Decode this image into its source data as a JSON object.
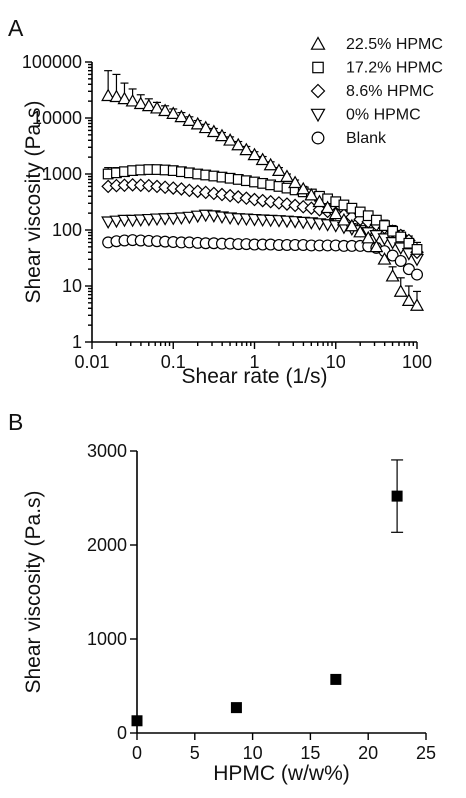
{
  "chart_data": [
    {
      "panel": "A",
      "type": "scatter",
      "xlabel": "Shear rate (1/s)",
      "ylabel": "Shear viscosity (Pa.s)",
      "xscale": "log",
      "yscale": "log",
      "xlim": [
        0.01,
        100
      ],
      "ylim": [
        1,
        100000
      ],
      "x_ticks": [
        "0.01",
        "0.1",
        "1",
        "10",
        "100"
      ],
      "y_ticks": [
        "1",
        "10",
        "100",
        "1000",
        "10000",
        "100000"
      ],
      "grid": false,
      "legend_position": "top-right",
      "series": [
        {
          "name": "22.5% HPMC",
          "marker": "triangle-up",
          "x": [
            0.0158,
            0.02,
            0.0251,
            0.0316,
            0.0398,
            0.0501,
            0.0631,
            0.0794,
            0.1,
            0.126,
            0.158,
            0.2,
            0.251,
            0.316,
            0.398,
            0.501,
            0.631,
            0.794,
            1.0,
            1.26,
            1.58,
            2.0,
            2.51,
            3.16,
            3.98,
            5.01,
            6.31,
            7.94,
            10.0,
            12.6,
            15.8,
            20.0,
            25.1,
            31.6,
            39.8,
            50.1,
            63.1,
            79.4,
            100
          ],
          "y": [
            25000,
            24000,
            22000,
            20000,
            18000,
            16500,
            15000,
            13500,
            12000,
            10500,
            9000,
            7800,
            6700,
            5700,
            4800,
            4000,
            3300,
            2700,
            2200,
            1800,
            1450,
            1150,
            900,
            700,
            540,
            420,
            320,
            250,
            195,
            150,
            118,
            92,
            72,
            50,
            30,
            15,
            8,
            5.5,
            4.5
          ],
          "y_upper": [
            70000,
            60000,
            42000,
            33000,
            26000,
            22000,
            19000,
            16500,
            14500,
            12500,
            10500,
            9000,
            7700,
            6500,
            5500,
            4600,
            3800,
            3100,
            2500,
            2050,
            1650,
            1300,
            1000,
            780,
            600,
            470,
            360,
            280,
            215,
            165,
            130,
            100,
            80,
            58,
            38,
            22,
            14,
            10,
            8
          ]
        },
        {
          "name": "17.2% HPMC",
          "marker": "square",
          "x": [
            0.0158,
            0.02,
            0.0251,
            0.0316,
            0.0398,
            0.0501,
            0.0631,
            0.0794,
            0.1,
            0.126,
            0.158,
            0.2,
            0.251,
            0.316,
            0.398,
            0.501,
            0.631,
            0.794,
            1.0,
            1.26,
            1.58,
            2.0,
            2.51,
            3.16,
            3.98,
            5.01,
            6.31,
            7.94,
            10.0,
            12.6,
            15.8,
            20.0,
            25.1,
            31.6,
            39.8,
            50.1,
            63.1,
            79.4,
            100
          ],
          "y": [
            1000,
            1050,
            1100,
            1150,
            1180,
            1200,
            1200,
            1180,
            1150,
            1100,
            1050,
            1000,
            960,
            920,
            880,
            840,
            800,
            760,
            720,
            680,
            640,
            600,
            560,
            520,
            480,
            440,
            400,
            360,
            320,
            280,
            245,
            210,
            180,
            150,
            120,
            95,
            75,
            58,
            45
          ],
          "y_upper": [
            1300,
            1300,
            1320,
            1330,
            1330,
            1320,
            1310,
            1280,
            1240,
            1190,
            1130,
            1080,
            1030,
            990,
            950,
            900,
            860,
            820,
            780,
            740,
            700,
            660,
            620,
            580,
            540,
            500,
            460,
            420,
            380,
            330,
            290,
            250,
            215,
            180,
            150,
            120,
            98,
            78,
            60
          ]
        },
        {
          "name": "8.6% HPMC",
          "marker": "diamond",
          "x": [
            0.0158,
            0.02,
            0.0251,
            0.0316,
            0.0398,
            0.0501,
            0.0631,
            0.0794,
            0.1,
            0.126,
            0.158,
            0.2,
            0.251,
            0.316,
            0.398,
            0.501,
            0.631,
            0.794,
            1.0,
            1.26,
            1.58,
            2.0,
            2.51,
            3.16,
            3.98,
            5.01,
            6.31,
            7.94,
            10.0,
            12.6,
            15.8,
            20.0,
            25.1,
            31.6,
            39.8,
            50.1,
            63.1,
            79.4,
            100
          ],
          "y": [
            600,
            620,
            630,
            640,
            630,
            620,
            600,
            580,
            560,
            540,
            510,
            490,
            470,
            450,
            430,
            410,
            390,
            370,
            350,
            335,
            320,
            305,
            290,
            275,
            260,
            245,
            230,
            215,
            200,
            185,
            170,
            155,
            140,
            125,
            110,
            95,
            80,
            65,
            40
          ]
        },
        {
          "name": "0% HPMC",
          "marker": "triangle-down",
          "x": [
            0.0158,
            0.02,
            0.0251,
            0.0316,
            0.0398,
            0.0501,
            0.0631,
            0.0794,
            0.1,
            0.126,
            0.158,
            0.2,
            0.251,
            0.316,
            0.398,
            0.501,
            0.631,
            0.794,
            1.0,
            1.26,
            1.58,
            2.0,
            2.51,
            3.16,
            3.98,
            5.01,
            6.31,
            7.94,
            10.0,
            12.6,
            15.8,
            20.0,
            25.1,
            31.6,
            39.8,
            50.1,
            63.1,
            79.4,
            100
          ],
          "y": [
            140,
            145,
            150,
            150,
            152,
            155,
            158,
            160,
            162,
            165,
            170,
            178,
            185,
            180,
            172,
            165,
            160,
            158,
            155,
            152,
            150,
            148,
            145,
            142,
            138,
            135,
            130,
            125,
            120,
            112,
            105,
            98,
            90,
            80,
            70,
            60,
            48,
            38,
            30
          ]
        },
        {
          "name": "Blank",
          "marker": "circle",
          "x": [
            0.0158,
            0.02,
            0.0251,
            0.0316,
            0.0398,
            0.0501,
            0.0631,
            0.0794,
            0.1,
            0.126,
            0.158,
            0.2,
            0.251,
            0.316,
            0.398,
            0.501,
            0.631,
            0.794,
            1.0,
            1.26,
            1.58,
            2.0,
            2.51,
            3.16,
            3.98,
            5.01,
            6.31,
            7.94,
            10.0,
            12.6,
            15.8,
            20.0,
            25.1,
            31.6,
            39.8,
            50.1,
            63.1,
            79.4,
            100
          ],
          "y": [
            60,
            63,
            65,
            66,
            65,
            64,
            63,
            62,
            61,
            60,
            60,
            59,
            58,
            58,
            57,
            57,
            56,
            56,
            55,
            55,
            55,
            54,
            54,
            54,
            54,
            53,
            53,
            53,
            53,
            52,
            52,
            52,
            51,
            48,
            42,
            35,
            28,
            20,
            16
          ]
        }
      ]
    },
    {
      "panel": "B",
      "type": "scatter",
      "xlabel": "HPMC (w/w%)",
      "ylabel": "Shear viscosity (Pa.s)",
      "xlim": [
        0,
        25
      ],
      "ylim": [
        0,
        3000
      ],
      "x_ticks": [
        "0",
        "5",
        "10",
        "15",
        "20",
        "25"
      ],
      "y_ticks": [
        "0",
        "1000",
        "2000",
        "3000"
      ],
      "grid": false,
      "marker": "filled-square",
      "series": [
        {
          "x": [
            0,
            8.6,
            17.2,
            22.5
          ],
          "y": [
            130,
            270,
            570,
            2520
          ],
          "err": [
            20,
            25,
            50,
            385
          ]
        }
      ]
    }
  ],
  "labels": {
    "panel_a": "A",
    "panel_b": "B"
  }
}
